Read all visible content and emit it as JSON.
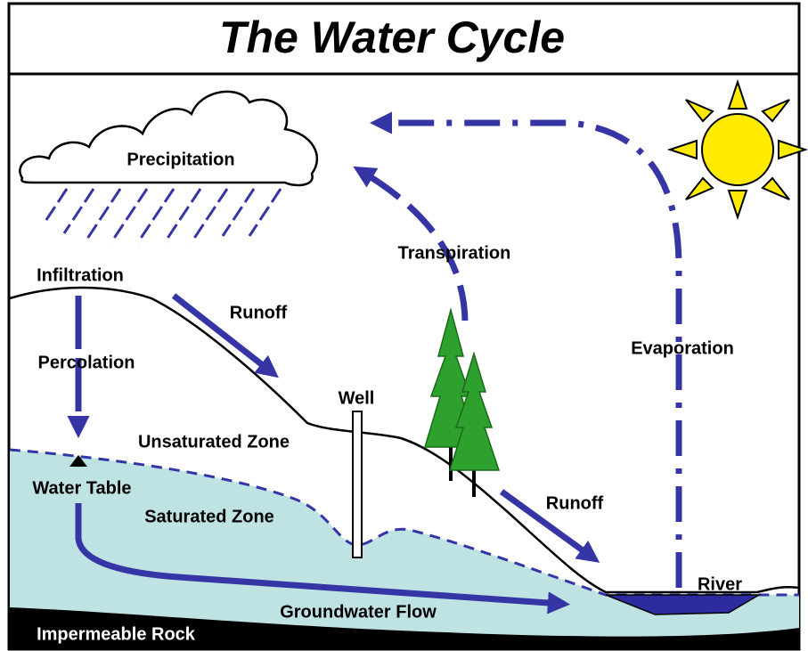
{
  "title": "The Water Cycle",
  "labels": {
    "precipitation": "Precipitation",
    "infiltration": "Infiltration",
    "runoff_upper": "Runoff",
    "percolation": "Percolation",
    "well": "Well",
    "unsaturated_zone": "Unsaturated Zone",
    "water_table": "Water Table",
    "saturated_zone": "Saturated Zone",
    "transpiration": "Transpiration",
    "evaporation": "Evaporation",
    "runoff_lower": "Runoff",
    "river": "River",
    "groundwater_flow": "Groundwater Flow",
    "impermeable_rock": "Impermeable Rock"
  }
}
